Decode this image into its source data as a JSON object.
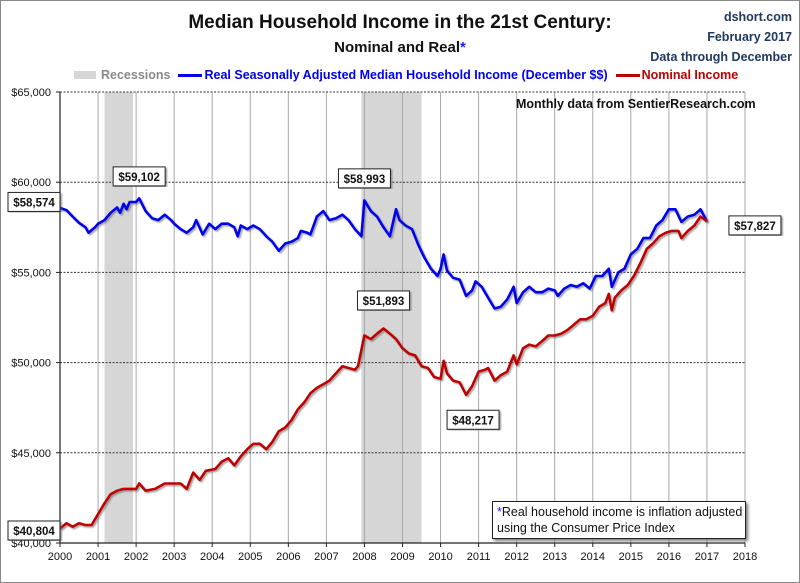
{
  "header": {
    "title": "Median Household Income in the 21st Century:",
    "subtitle": "Nominal and Real",
    "subtitle_asterisk": "*",
    "source_site": "dshort.com",
    "source_date": "February 2017",
    "source_note": "Data through December"
  },
  "legend": {
    "recessions": "Recessions",
    "real": "Real Seasonally Adjusted Median Household Income (December $$)",
    "nominal": "Nominal Income"
  },
  "annotations": {
    "monthly_source": "Monthly data from SentierResearch.com",
    "footnote_asterisk": "*",
    "footnote_line1": "Real household  income is inflation adjusted",
    "footnote_line2": "using  the Consumer Price Index"
  },
  "colors": {
    "real": "#0000ee",
    "nominal": "#c00000",
    "recession": "#d6d6d6",
    "source_text": "#1f3864"
  },
  "chart_data": {
    "type": "line",
    "title": "Median Household Income in the 21st Century: Nominal and Real*",
    "xlabel": "",
    "ylabel": "",
    "xlim": [
      2000,
      2018
    ],
    "ylim": [
      40000,
      65000
    ],
    "x_ticks": [
      "2000",
      "2001",
      "2002",
      "2003",
      "2004",
      "2005",
      "2006",
      "2007",
      "2008",
      "2009",
      "2010",
      "2011",
      "2012",
      "2013",
      "2014",
      "2015",
      "2016",
      "2017",
      "2018"
    ],
    "y_ticks": [
      "$40,000",
      "$45,000",
      "$50,000",
      "$55,000",
      "$60,000",
      "$65,000"
    ],
    "y_tick_values": [
      40000,
      45000,
      50000,
      55000,
      60000,
      65000
    ],
    "grid": "horizontal dashed, vertical solid",
    "legend_placement": "top",
    "recessions": [
      [
        2001.17,
        2001.92
      ],
      [
        2007.92,
        2009.5
      ]
    ],
    "series": [
      {
        "name": "Real Seasonally Adjusted Median Household Income (December $$)",
        "color": "#0000ee",
        "points": [
          [
            2000.0,
            58574
          ],
          [
            2000.17,
            58450
          ],
          [
            2000.33,
            58100
          ],
          [
            2000.5,
            57750
          ],
          [
            2000.67,
            57500
          ],
          [
            2000.75,
            57200
          ],
          [
            2000.92,
            57500
          ],
          [
            2001.0,
            57700
          ],
          [
            2001.17,
            57900
          ],
          [
            2001.33,
            58300
          ],
          [
            2001.5,
            58600
          ],
          [
            2001.58,
            58300
          ],
          [
            2001.67,
            58800
          ],
          [
            2001.75,
            58500
          ],
          [
            2001.83,
            58900
          ],
          [
            2002.0,
            58900
          ],
          [
            2002.08,
            59102
          ],
          [
            2002.25,
            58400
          ],
          [
            2002.42,
            58000
          ],
          [
            2002.58,
            57900
          ],
          [
            2002.75,
            58200
          ],
          [
            2002.92,
            57900
          ],
          [
            2003.0,
            57700
          ],
          [
            2003.17,
            57400
          ],
          [
            2003.33,
            57200
          ],
          [
            2003.5,
            57500
          ],
          [
            2003.58,
            57900
          ],
          [
            2003.75,
            57100
          ],
          [
            2003.92,
            57700
          ],
          [
            2004.08,
            57400
          ],
          [
            2004.25,
            57700
          ],
          [
            2004.42,
            57700
          ],
          [
            2004.58,
            57500
          ],
          [
            2004.67,
            57000
          ],
          [
            2004.75,
            57600
          ],
          [
            2004.92,
            57400
          ],
          [
            2005.08,
            57600
          ],
          [
            2005.25,
            57400
          ],
          [
            2005.42,
            57000
          ],
          [
            2005.58,
            56700
          ],
          [
            2005.75,
            56200
          ],
          [
            2005.92,
            56600
          ],
          [
            2006.08,
            56700
          ],
          [
            2006.25,
            56900
          ],
          [
            2006.33,
            57300
          ],
          [
            2006.5,
            57200
          ],
          [
            2006.58,
            57100
          ],
          [
            2006.75,
            58100
          ],
          [
            2006.92,
            58400
          ],
          [
            2007.08,
            57900
          ],
          [
            2007.25,
            58000
          ],
          [
            2007.42,
            58200
          ],
          [
            2007.58,
            57900
          ],
          [
            2007.75,
            57400
          ],
          [
            2007.92,
            57000
          ],
          [
            2008.0,
            58993
          ],
          [
            2008.17,
            58400
          ],
          [
            2008.33,
            58100
          ],
          [
            2008.5,
            57500
          ],
          [
            2008.67,
            57000
          ],
          [
            2008.83,
            58500
          ],
          [
            2008.92,
            57900
          ],
          [
            2009.08,
            57600
          ],
          [
            2009.25,
            57400
          ],
          [
            2009.42,
            56500
          ],
          [
            2009.58,
            55800
          ],
          [
            2009.75,
            55200
          ],
          [
            2009.92,
            54800
          ],
          [
            2010.0,
            55200
          ],
          [
            2010.08,
            56000
          ],
          [
            2010.17,
            55100
          ],
          [
            2010.33,
            54700
          ],
          [
            2010.5,
            54600
          ],
          [
            2010.67,
            53700
          ],
          [
            2010.83,
            54000
          ],
          [
            2010.92,
            54500
          ],
          [
            2011.08,
            54200
          ],
          [
            2011.25,
            53600
          ],
          [
            2011.42,
            53000
          ],
          [
            2011.58,
            53100
          ],
          [
            2011.75,
            53500
          ],
          [
            2011.92,
            54200
          ],
          [
            2012.0,
            53300
          ],
          [
            2012.17,
            53900
          ],
          [
            2012.33,
            54200
          ],
          [
            2012.5,
            53900
          ],
          [
            2012.67,
            53900
          ],
          [
            2012.83,
            54100
          ],
          [
            2013.0,
            54000
          ],
          [
            2013.08,
            53700
          ],
          [
            2013.25,
            54100
          ],
          [
            2013.42,
            54300
          ],
          [
            2013.58,
            54200
          ],
          [
            2013.75,
            54400
          ],
          [
            2013.92,
            54100
          ],
          [
            2014.08,
            54800
          ],
          [
            2014.25,
            54800
          ],
          [
            2014.42,
            55200
          ],
          [
            2014.5,
            54200
          ],
          [
            2014.67,
            55000
          ],
          [
            2014.83,
            55200
          ],
          [
            2015.0,
            56000
          ],
          [
            2015.17,
            56300
          ],
          [
            2015.33,
            56900
          ],
          [
            2015.5,
            56900
          ],
          [
            2015.67,
            57600
          ],
          [
            2015.83,
            57900
          ],
          [
            2016.0,
            58500
          ],
          [
            2016.17,
            58500
          ],
          [
            2016.33,
            57800
          ],
          [
            2016.5,
            58100
          ],
          [
            2016.67,
            58200
          ],
          [
            2016.83,
            58500
          ],
          [
            2017.0,
            57827
          ]
        ]
      },
      {
        "name": "Nominal Income",
        "color": "#c00000",
        "points": [
          [
            2000.0,
            40804
          ],
          [
            2000.17,
            41100
          ],
          [
            2000.33,
            40900
          ],
          [
            2000.5,
            41100
          ],
          [
            2000.67,
            41000
          ],
          [
            2000.83,
            41000
          ],
          [
            2001.0,
            41600
          ],
          [
            2001.17,
            42200
          ],
          [
            2001.33,
            42700
          ],
          [
            2001.5,
            42900
          ],
          [
            2001.67,
            43000
          ],
          [
            2001.83,
            43000
          ],
          [
            2002.0,
            43000
          ],
          [
            2002.08,
            43300
          ],
          [
            2002.25,
            42900
          ],
          [
            2002.5,
            43000
          ],
          [
            2002.75,
            43300
          ],
          [
            2003.0,
            43300
          ],
          [
            2003.17,
            43300
          ],
          [
            2003.33,
            43000
          ],
          [
            2003.5,
            43900
          ],
          [
            2003.67,
            43500
          ],
          [
            2003.83,
            44000
          ],
          [
            2004.08,
            44100
          ],
          [
            2004.25,
            44500
          ],
          [
            2004.42,
            44700
          ],
          [
            2004.58,
            44300
          ],
          [
            2004.75,
            44800
          ],
          [
            2004.92,
            45200
          ],
          [
            2005.08,
            45500
          ],
          [
            2005.25,
            45500
          ],
          [
            2005.42,
            45200
          ],
          [
            2005.58,
            45600
          ],
          [
            2005.75,
            46200
          ],
          [
            2005.92,
            46400
          ],
          [
            2006.08,
            46800
          ],
          [
            2006.25,
            47400
          ],
          [
            2006.42,
            47800
          ],
          [
            2006.58,
            48300
          ],
          [
            2006.75,
            48600
          ],
          [
            2006.92,
            48800
          ],
          [
            2007.08,
            49000
          ],
          [
            2007.25,
            49400
          ],
          [
            2007.42,
            49800
          ],
          [
            2007.58,
            49700
          ],
          [
            2007.75,
            49600
          ],
          [
            2007.83,
            49800
          ],
          [
            2008.0,
            51500
          ],
          [
            2008.17,
            51300
          ],
          [
            2008.33,
            51600
          ],
          [
            2008.5,
            51893
          ],
          [
            2008.67,
            51600
          ],
          [
            2008.83,
            51300
          ],
          [
            2009.0,
            50800
          ],
          [
            2009.17,
            50500
          ],
          [
            2009.33,
            50400
          ],
          [
            2009.5,
            49800
          ],
          [
            2009.67,
            49700
          ],
          [
            2009.83,
            49200
          ],
          [
            2010.0,
            49100
          ],
          [
            2010.08,
            50100
          ],
          [
            2010.17,
            49400
          ],
          [
            2010.33,
            49000
          ],
          [
            2010.5,
            48900
          ],
          [
            2010.67,
            48217
          ],
          [
            2010.83,
            48700
          ],
          [
            2011.0,
            49500
          ],
          [
            2011.17,
            49600
          ],
          [
            2011.25,
            49700
          ],
          [
            2011.42,
            49000
          ],
          [
            2011.58,
            49300
          ],
          [
            2011.75,
            49500
          ],
          [
            2011.92,
            50400
          ],
          [
            2012.0,
            49900
          ],
          [
            2012.17,
            50800
          ],
          [
            2012.33,
            51000
          ],
          [
            2012.5,
            50900
          ],
          [
            2012.67,
            51200
          ],
          [
            2012.83,
            51500
          ],
          [
            2013.0,
            51500
          ],
          [
            2013.17,
            51600
          ],
          [
            2013.33,
            51800
          ],
          [
            2013.5,
            52100
          ],
          [
            2013.67,
            52400
          ],
          [
            2013.83,
            52400
          ],
          [
            2014.0,
            52600
          ],
          [
            2014.17,
            53100
          ],
          [
            2014.33,
            53300
          ],
          [
            2014.42,
            53800
          ],
          [
            2014.5,
            52900
          ],
          [
            2014.58,
            53600
          ],
          [
            2014.75,
            54000
          ],
          [
            2014.92,
            54300
          ],
          [
            2015.08,
            54800
          ],
          [
            2015.25,
            55500
          ],
          [
            2015.42,
            56300
          ],
          [
            2015.58,
            56600
          ],
          [
            2015.75,
            57000
          ],
          [
            2015.92,
            57200
          ],
          [
            2016.08,
            57300
          ],
          [
            2016.25,
            57300
          ],
          [
            2016.33,
            56900
          ],
          [
            2016.5,
            57300
          ],
          [
            2016.67,
            57600
          ],
          [
            2016.83,
            58100
          ],
          [
            2017.0,
            57827
          ]
        ]
      }
    ],
    "data_labels": [
      {
        "series": "real",
        "x": 2000.0,
        "y": 58574,
        "text": "$58,574"
      },
      {
        "series": "real",
        "x": 2002.08,
        "y": 59102,
        "text": "$59,102"
      },
      {
        "series": "real",
        "x": 2008.0,
        "y": 58993,
        "text": "$58,993"
      },
      {
        "series": "nominal",
        "x": 2008.5,
        "y": 51893,
        "text": "$51,893"
      },
      {
        "series": "nominal",
        "x": 2010.67,
        "y": 48217,
        "text": "$48,217"
      },
      {
        "series": "nominal",
        "x": 2000.0,
        "y": 40804,
        "text": "$40,804"
      },
      {
        "series": "both",
        "x": 2017.0,
        "y": 57827,
        "text": "$57,827"
      }
    ]
  }
}
